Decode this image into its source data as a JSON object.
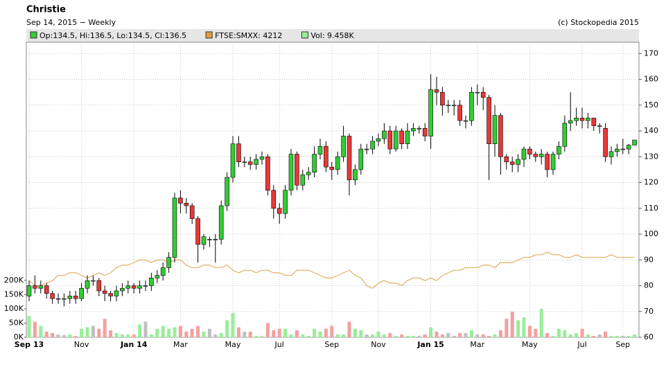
{
  "chart_data": {
    "type": "candlestick",
    "title": "Christie",
    "subtitle": "Sep 14, 2015 − Weekly",
    "credit": "(c) Stockopedia 2015",
    "legend": [
      {
        "label": "Op:134.5, Hi:136.5, Lo:134.5, Cl:136.5",
        "color": "#33cc33"
      },
      {
        "label": "FTSE:SMXX: 4212",
        "color": "#e0a040"
      },
      {
        "label": "Vol: 9.458K",
        "color": "#99ee99"
      }
    ],
    "categories": [
      "Sep 13",
      null,
      null,
      null,
      null,
      null,
      null,
      null,
      null,
      "Nov",
      null,
      null,
      null,
      null,
      null,
      null,
      null,
      null,
      "Jan 14",
      null,
      null,
      null,
      null,
      null,
      null,
      null,
      "Mar",
      null,
      null,
      null,
      null,
      null,
      null,
      null,
      null,
      "May",
      null,
      null,
      null,
      null,
      null,
      null,
      null,
      "Jul",
      null,
      null,
      null,
      null,
      null,
      null,
      null,
      null,
      "Sep",
      null,
      null,
      null,
      null,
      null,
      null,
      null,
      "Nov",
      null,
      null,
      null,
      null,
      null,
      null,
      null,
      null,
      "Jan 15",
      null,
      null,
      null,
      null,
      null,
      null,
      null,
      "Mar",
      null,
      null,
      null,
      null,
      null,
      null,
      null,
      null,
      "May",
      null,
      null,
      null,
      null,
      null,
      null,
      null,
      null,
      "Jul",
      null,
      null,
      null,
      null,
      null,
      null,
      "Sep",
      null,
      null
    ],
    "open": [
      76,
      80,
      79,
      80,
      77,
      75,
      75,
      75,
      76,
      75,
      79,
      82,
      82,
      78,
      77,
      76,
      78,
      79,
      80,
      79,
      80,
      80,
      83,
      84,
      87,
      91,
      114,
      112,
      111,
      106,
      96,
      98,
      98,
      98,
      111,
      122,
      135,
      128,
      128,
      127,
      129,
      130,
      117,
      110,
      108,
      117,
      131,
      119,
      123,
      124,
      131,
      134,
      126,
      125,
      130,
      138,
      121,
      125,
      133,
      133,
      136,
      137,
      140,
      133,
      140,
      135,
      140,
      141,
      141,
      138,
      156,
      155,
      150,
      150,
      150,
      144,
      144,
      155,
      155,
      153,
      135,
      146,
      130,
      128,
      127,
      129,
      133,
      131,
      130,
      131,
      125,
      131,
      134,
      143,
      144,
      145,
      144,
      145,
      142,
      141,
      130,
      132,
      133,
      133,
      134.5
    ],
    "high": [
      82,
      84,
      82,
      81,
      78,
      77,
      77,
      78,
      78,
      81,
      84,
      84,
      83,
      80,
      78,
      80,
      81,
      82,
      81,
      82,
      82,
      85,
      86,
      89,
      93,
      116,
      117,
      114,
      112,
      107,
      100,
      99,
      100,
      113,
      124,
      138,
      138,
      130,
      130,
      131,
      132,
      131,
      119,
      112,
      119,
      133,
      132,
      125,
      126,
      134,
      137,
      136,
      128,
      132,
      142,
      139,
      127,
      135,
      135,
      138,
      139,
      143,
      142,
      142,
      141,
      143,
      143,
      142,
      143,
      162,
      161,
      157,
      152,
      152,
      152,
      146,
      157,
      158,
      157,
      154,
      150,
      147,
      131,
      130,
      131,
      134,
      134,
      132,
      133,
      132,
      132,
      136,
      146,
      155,
      149,
      149,
      147,
      144,
      143,
      143,
      134,
      135,
      137,
      135,
      136.5
    ],
    "low": [
      74,
      77,
      77,
      75,
      73,
      73,
      72,
      73,
      73,
      74,
      77,
      80,
      76,
      74,
      74,
      74,
      76,
      77,
      77,
      77,
      78,
      78,
      81,
      82,
      85,
      89,
      108,
      108,
      104,
      89,
      94,
      95,
      89,
      96,
      109,
      120,
      126,
      126,
      125,
      125,
      127,
      115,
      106,
      104,
      106,
      115,
      117,
      117,
      121,
      122,
      129,
      124,
      121,
      123,
      128,
      115,
      119,
      123,
      131,
      131,
      134,
      135,
      131,
      132,
      133,
      133,
      138,
      139,
      136,
      133,
      150,
      146,
      147,
      146,
      142,
      141,
      142,
      150,
      148,
      121,
      130,
      123,
      125,
      124,
      124,
      126,
      129,
      128,
      127,
      122,
      123,
      129,
      132,
      140,
      142,
      141,
      141,
      140,
      139,
      128,
      127,
      130,
      131,
      131,
      134.5
    ],
    "close": [
      80,
      79,
      80,
      77,
      75,
      75,
      75,
      76,
      75,
      79,
      82,
      82,
      78,
      77,
      76,
      78,
      79,
      80,
      79,
      80,
      80,
      83,
      84,
      87,
      91,
      114,
      112,
      111,
      106,
      96,
      99,
      98,
      98,
      111,
      122,
      135,
      128,
      128,
      127,
      129,
      130,
      117,
      110,
      108,
      117,
      131,
      119,
      123,
      124,
      131,
      134,
      126,
      125,
      130,
      138,
      121,
      125,
      133,
      133,
      136,
      137,
      140,
      133,
      140,
      135,
      140,
      141,
      141,
      138,
      156,
      155,
      150,
      150,
      150,
      144,
      144,
      155,
      155,
      153,
      135,
      146,
      130,
      128,
      127,
      129,
      133,
      131,
      130,
      131,
      125,
      131,
      134,
      143,
      144,
      145,
      144,
      145,
      142,
      142,
      130,
      132,
      133,
      133,
      134.5,
      136.5
    ],
    "volume": [
      75000,
      55000,
      40000,
      20000,
      15000,
      10000,
      8000,
      10000,
      5000,
      30000,
      35000,
      40000,
      30000,
      65000,
      25000,
      15000,
      10000,
      10000,
      10000,
      45000,
      55000,
      10000,
      30000,
      40000,
      30000,
      35000,
      40000,
      20000,
      30000,
      40000,
      20000,
      30000,
      10000,
      15000,
      60000,
      85000,
      35000,
      20000,
      20000,
      5000,
      5000,
      50000,
      25000,
      30000,
      30000,
      10000,
      25000,
      10000,
      5000,
      30000,
      20000,
      30000,
      40000,
      10000,
      10000,
      55000,
      30000,
      25000,
      10000,
      10000,
      20000,
      10000,
      15000,
      5000,
      10000,
      5000,
      5000,
      5000,
      10000,
      35000,
      20000,
      10000,
      15000,
      5000,
      15000,
      15000,
      25000,
      10000,
      10000,
      5000,
      10000,
      25000,
      65000,
      90000,
      60000,
      70000,
      40000,
      30000,
      100000,
      15000,
      5000,
      30000,
      25000,
      10000,
      15000,
      30000,
      10000,
      5000,
      10000,
      20000,
      5000,
      5000,
      5000,
      5000,
      10000
    ],
    "index_line": [
      82,
      80,
      80,
      81,
      82,
      84,
      84,
      85,
      85,
      84,
      83,
      84,
      85,
      84,
      85,
      87,
      88,
      88,
      89,
      90,
      90,
      89,
      90,
      90,
      89,
      90,
      90,
      88,
      87,
      87,
      88,
      88,
      87,
      87,
      88,
      86,
      85,
      86,
      86,
      85,
      86,
      86,
      85,
      85,
      84,
      84,
      86,
      86,
      86,
      85,
      84,
      83,
      83,
      84,
      85,
      86,
      84,
      83,
      80,
      79,
      81,
      82,
      81,
      81,
      80,
      82,
      83,
      83,
      82,
      83,
      82,
      84,
      85,
      86,
      86,
      87,
      87,
      87,
      88,
      88,
      87,
      89,
      89,
      89,
      90,
      91,
      91,
      92,
      92,
      93,
      92,
      92,
      91,
      91,
      92,
      91,
      91,
      91,
      91,
      91,
      92,
      91,
      91,
      91,
      91
    ],
    "colors": {
      "up": "#33cc33",
      "down": "#e83838",
      "flat": "#999999",
      "vol_up": "#99ee99",
      "vol_down": "#f4a0a0",
      "vol_flat": "#c0c0c0",
      "index": "#e0b060"
    },
    "ylim": [
      60,
      172.5
    ],
    "yticks": [
      60,
      70,
      80,
      90,
      100,
      110,
      120,
      130,
      140,
      150,
      160,
      170
    ],
    "y2lim": [
      0,
      1020000
    ],
    "y2ticks": [
      {
        "value": 0,
        "label": "0K"
      },
      {
        "value": 50000,
        "label": "50K"
      },
      {
        "value": 100000,
        "label": "100K"
      },
      {
        "value": 150000,
        "label": "150K"
      },
      {
        "value": 200000,
        "label": "200K"
      }
    ],
    "grid": true
  }
}
